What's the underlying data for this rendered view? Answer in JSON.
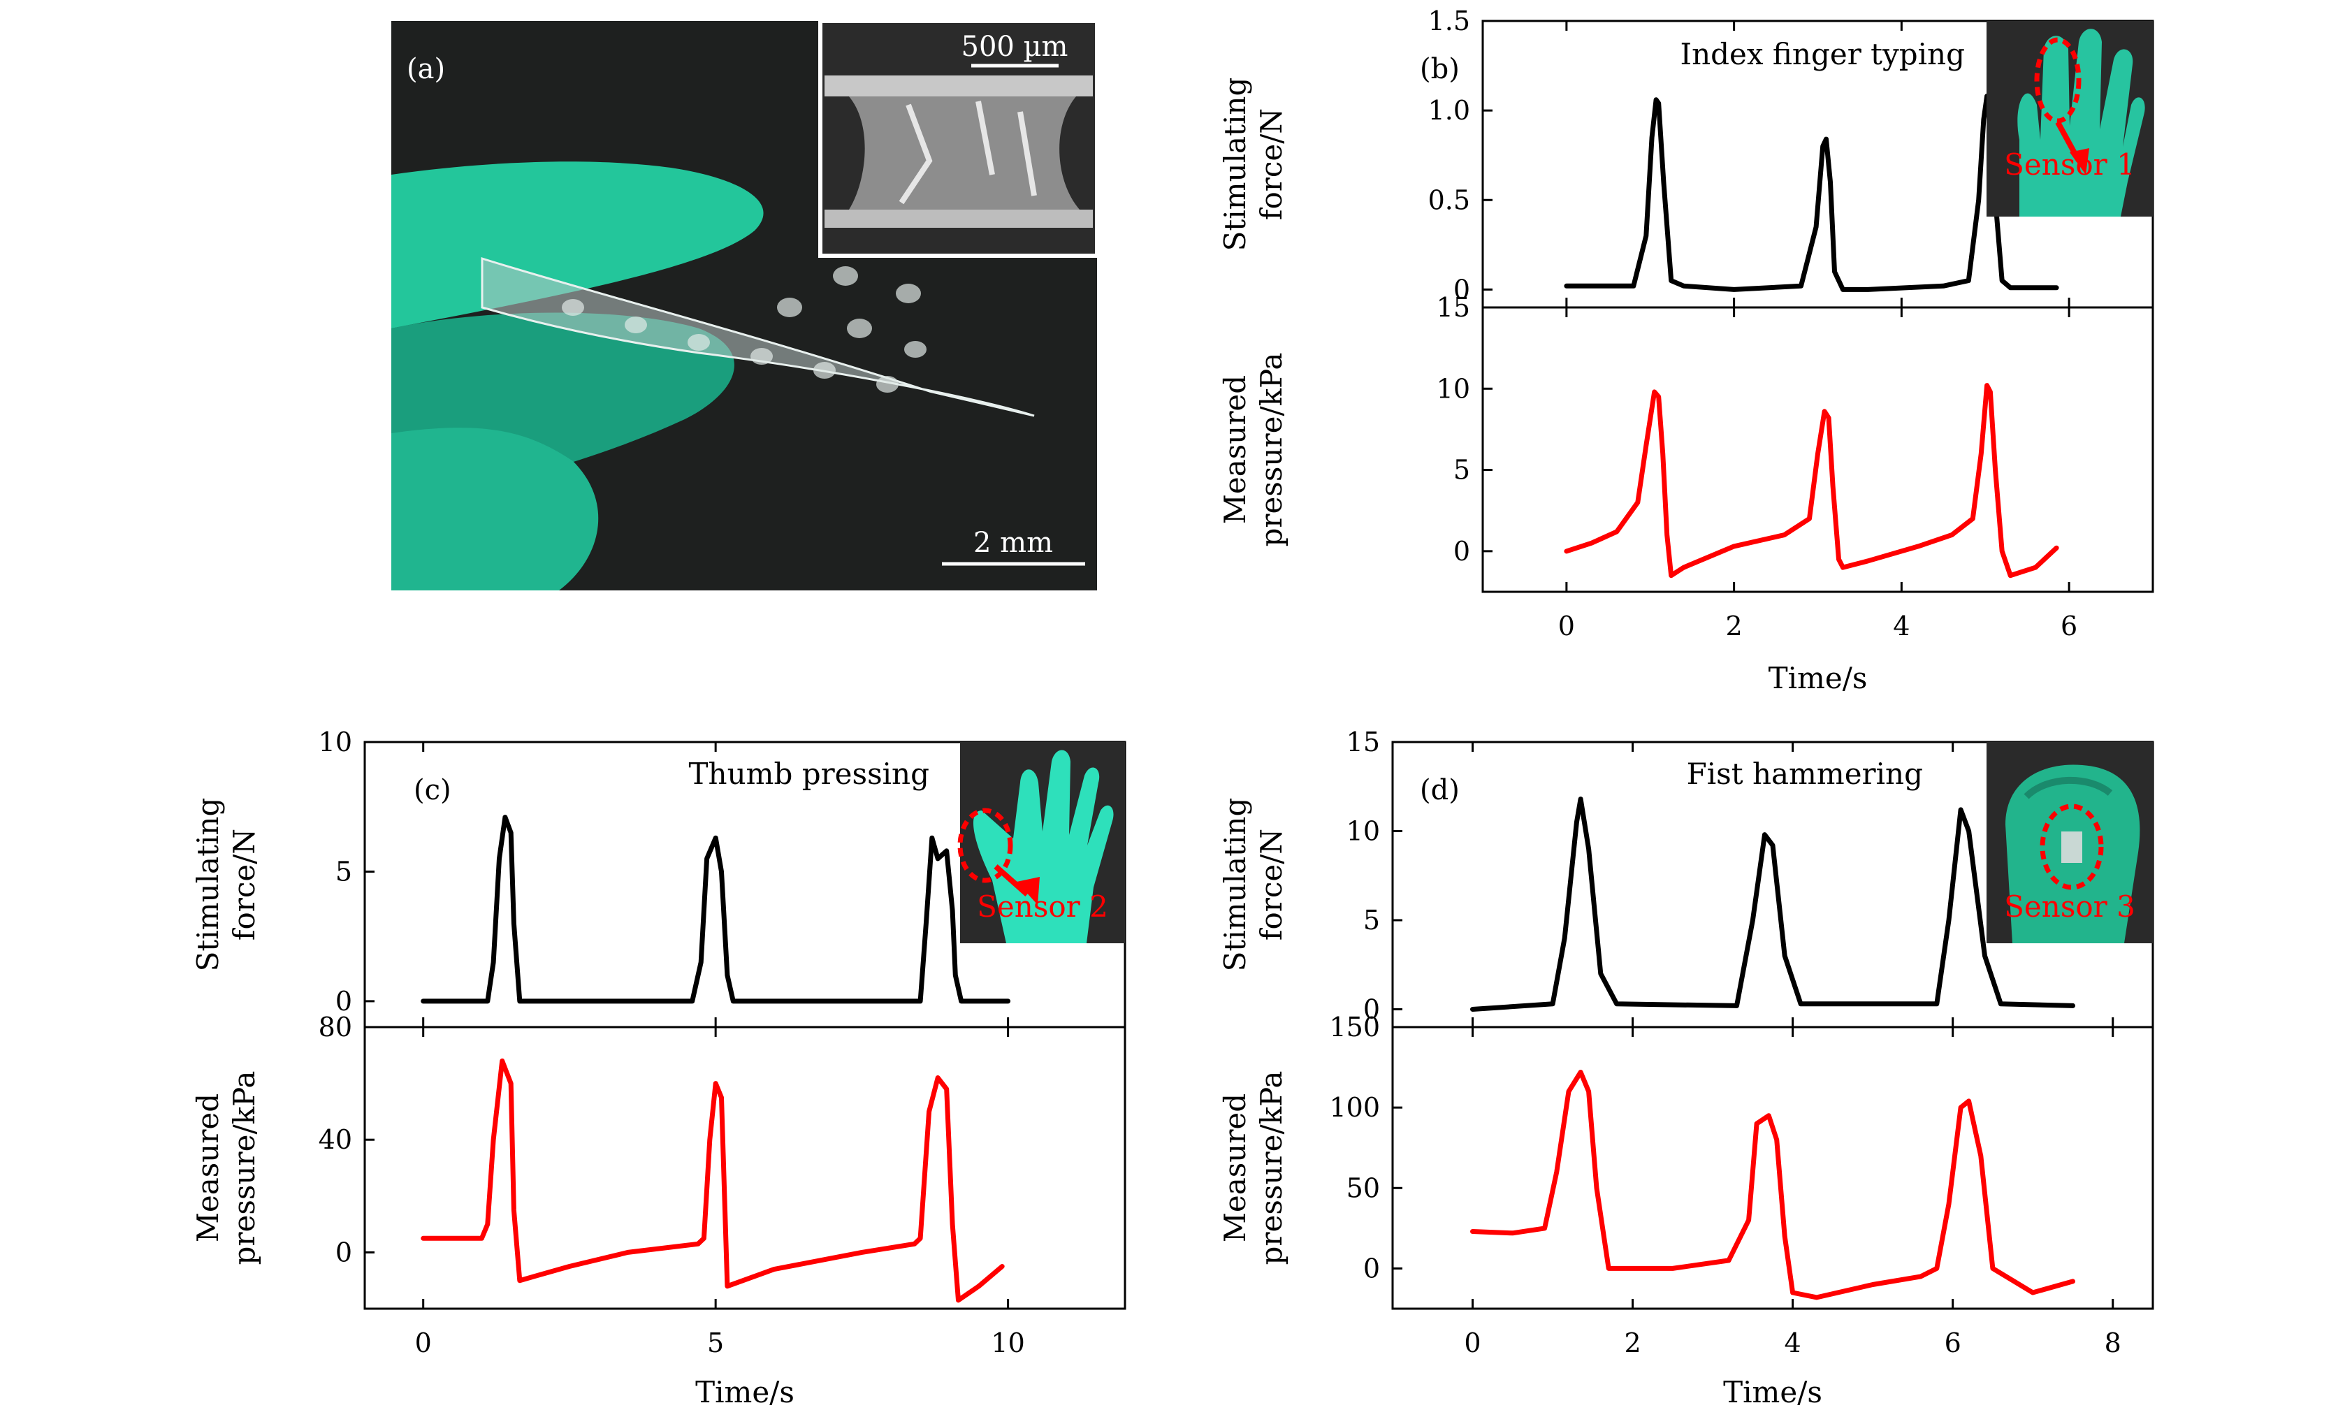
{
  "panel_a": {
    "label": "(a)",
    "inset_scale": "500 µm",
    "main_scale": "2 mm",
    "colors": {
      "background": "#1e201f",
      "glove": "#22c49a",
      "film": "#b9c6c4"
    }
  },
  "chart_data": [
    {
      "id": "b",
      "type": "line",
      "panel_label": "(b)",
      "annotation": "Index finger typing",
      "inset_label": "Sensor 1",
      "xlabel": "Time/s",
      "xlim": [
        -1,
        7
      ],
      "xticks": [
        0,
        2,
        4,
        6
      ],
      "xtick_labels": [
        "0",
        "2",
        "4",
        "6"
      ],
      "top": {
        "ylabel": [
          "Stimulating",
          "force/N"
        ],
        "ylim": [
          -0.1,
          1.5
        ],
        "yticks": [
          0,
          0.5,
          1.0,
          1.5
        ],
        "ytick_labels": [
          "0",
          "0.5",
          "1.0",
          "1.5"
        ],
        "color": "#000000",
        "x": [
          0,
          0.8,
          0.95,
          1.02,
          1.07,
          1.1,
          1.16,
          1.25,
          1.4,
          2.0,
          2.8,
          2.98,
          3.06,
          3.1,
          3.15,
          3.2,
          3.3,
          3.6,
          4.5,
          4.8,
          4.92,
          4.98,
          5.02,
          5.06,
          5.12,
          5.2,
          5.3,
          5.85
        ],
        "y": [
          0.02,
          0.02,
          0.3,
          0.85,
          1.06,
          1.04,
          0.6,
          0.05,
          0.02,
          0.0,
          0.02,
          0.35,
          0.8,
          0.84,
          0.6,
          0.1,
          0.0,
          0.0,
          0.02,
          0.05,
          0.5,
          0.95,
          1.08,
          1.0,
          0.5,
          0.05,
          0.01,
          0.01
        ]
      },
      "bottom": {
        "ylabel": [
          "Measured",
          "pressure/kPa"
        ],
        "ylim": [
          -2.5,
          15
        ],
        "yticks": [
          0,
          5,
          10,
          15
        ],
        "ytick_labels": [
          "0",
          "5",
          "10",
          "15"
        ],
        "color": "#ff0000",
        "x": [
          0,
          0.3,
          0.6,
          0.85,
          0.95,
          1.05,
          1.1,
          1.15,
          1.2,
          1.25,
          1.4,
          2.0,
          2.6,
          2.9,
          3.0,
          3.08,
          3.13,
          3.18,
          3.25,
          3.3,
          3.6,
          4.2,
          4.6,
          4.85,
          4.95,
          5.02,
          5.06,
          5.12,
          5.2,
          5.3,
          5.6,
          5.85
        ],
        "y": [
          0,
          0.5,
          1.2,
          3.0,
          6.5,
          9.8,
          9.5,
          6.0,
          1.0,
          -1.5,
          -1.0,
          0.3,
          1.0,
          2.0,
          6.0,
          8.6,
          8.2,
          4.0,
          -0.5,
          -1.0,
          -0.6,
          0.3,
          1.0,
          2.0,
          6.0,
          10.2,
          9.8,
          5.0,
          0.0,
          -1.5,
          -1.0,
          0.2
        ]
      }
    },
    {
      "id": "c",
      "type": "line",
      "panel_label": "(c)",
      "annotation": "Thumb pressing",
      "inset_label": "Sensor 2",
      "xlabel": "Time/s",
      "xlim": [
        -1,
        12
      ],
      "xticks": [
        0,
        5,
        10
      ],
      "xtick_labels": [
        "0",
        "5",
        "10"
      ],
      "top": {
        "ylabel": [
          "Stimulating",
          "force/N"
        ],
        "ylim": [
          -1,
          10
        ],
        "yticks": [
          0,
          5,
          10
        ],
        "ytick_labels": [
          "0",
          "5",
          "10"
        ],
        "color": "#000000",
        "x": [
          0,
          1.1,
          1.2,
          1.3,
          1.4,
          1.5,
          1.55,
          1.65,
          4.6,
          4.75,
          4.85,
          5.0,
          5.1,
          5.2,
          5.3,
          8.5,
          8.6,
          8.7,
          8.8,
          8.95,
          9.05,
          9.1,
          9.2,
          10.0
        ],
        "y": [
          0,
          0,
          1.5,
          5.5,
          7.1,
          6.5,
          3.0,
          0,
          0,
          1.5,
          5.5,
          6.3,
          5.0,
          1.0,
          0,
          0,
          3.0,
          6.3,
          5.5,
          5.8,
          3.5,
          1.0,
          0,
          0
        ]
      },
      "bottom": {
        "ylabel": [
          "Measured",
          "pressure/kPa"
        ],
        "ylim": [
          -20,
          80
        ],
        "yticks": [
          0,
          40,
          80
        ],
        "ytick_labels": [
          "0",
          "40",
          "80"
        ],
        "color": "#ff0000",
        "x": [
          0,
          1.0,
          1.1,
          1.2,
          1.35,
          1.5,
          1.55,
          1.65,
          2.5,
          3.5,
          4.7,
          4.8,
          4.9,
          5.0,
          5.1,
          5.2,
          6.0,
          7.5,
          8.4,
          8.5,
          8.65,
          8.8,
          8.95,
          9.05,
          9.15,
          9.5,
          9.9
        ],
        "y": [
          5,
          5,
          10,
          40,
          68,
          60,
          15,
          -10,
          -5,
          0,
          3,
          5,
          40,
          60,
          55,
          -12,
          -6,
          0,
          3,
          5,
          50,
          62,
          58,
          10,
          -17,
          -12,
          -5
        ]
      }
    },
    {
      "id": "d",
      "type": "line",
      "panel_label": "(d)",
      "annotation": "Fist hammering",
      "inset_label": "Sensor 3",
      "xlabel": "Time/s",
      "xlim": [
        -1,
        8.5
      ],
      "xticks": [
        0,
        2,
        4,
        6,
        8
      ],
      "xtick_labels": [
        "0",
        "2",
        "4",
        "6",
        "8"
      ],
      "top": {
        "ylabel": [
          "Stimulating",
          "force/N"
        ],
        "ylim": [
          -1,
          15
        ],
        "yticks": [
          0,
          5,
          10,
          15
        ],
        "ytick_labels": [
          "0",
          "5",
          "10",
          "15"
        ],
        "color": "#000000",
        "x": [
          0,
          1.0,
          1.15,
          1.3,
          1.35,
          1.45,
          1.6,
          1.8,
          3.3,
          3.5,
          3.65,
          3.75,
          3.9,
          4.1,
          5.8,
          5.95,
          6.1,
          6.2,
          6.4,
          6.6,
          7.5
        ],
        "y": [
          0,
          0.3,
          4.0,
          10.5,
          11.8,
          9.0,
          2.0,
          0.3,
          0.2,
          5.0,
          9.8,
          9.2,
          3.0,
          0.3,
          0.3,
          5.0,
          11.2,
          10.0,
          3.0,
          0.3,
          0.2
        ]
      },
      "bottom": {
        "ylabel": [
          "Measured",
          "pressure/kPa"
        ],
        "ylim": [
          -25,
          150
        ],
        "yticks": [
          0,
          50,
          100,
          150
        ],
        "ytick_labels": [
          "0",
          "50",
          "100",
          "150"
        ],
        "color": "#ff0000",
        "x": [
          0,
          0.5,
          0.9,
          1.05,
          1.2,
          1.35,
          1.45,
          1.55,
          1.7,
          2.5,
          3.2,
          3.45,
          3.55,
          3.7,
          3.8,
          3.9,
          4.0,
          4.3,
          5.0,
          5.6,
          5.8,
          5.95,
          6.1,
          6.2,
          6.35,
          6.5,
          7.0,
          7.5
        ],
        "y": [
          23,
          22,
          25,
          60,
          110,
          122,
          110,
          50,
          0,
          0,
          5,
          30,
          90,
          95,
          80,
          20,
          -15,
          -18,
          -10,
          -5,
          0,
          40,
          100,
          104,
          70,
          0,
          -15,
          -8
        ]
      }
    }
  ]
}
